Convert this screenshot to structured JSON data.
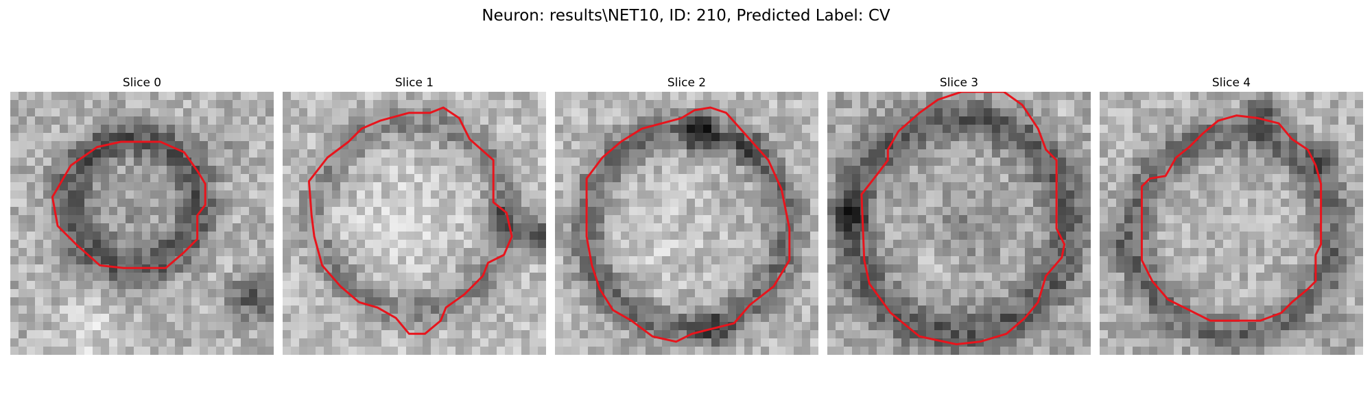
{
  "figure": {
    "title": "Neuron: results\\NET10, ID: 210, Predicted Label: CV"
  },
  "colors": {
    "contour": "#e8141c",
    "background": "#ffffff"
  },
  "panels": [
    {
      "title": "Slice 0"
    },
    {
      "title": "Slice 1"
    },
    {
      "title": "Slice 2"
    },
    {
      "title": "Slice 3"
    },
    {
      "title": "Slice 4"
    }
  ]
}
